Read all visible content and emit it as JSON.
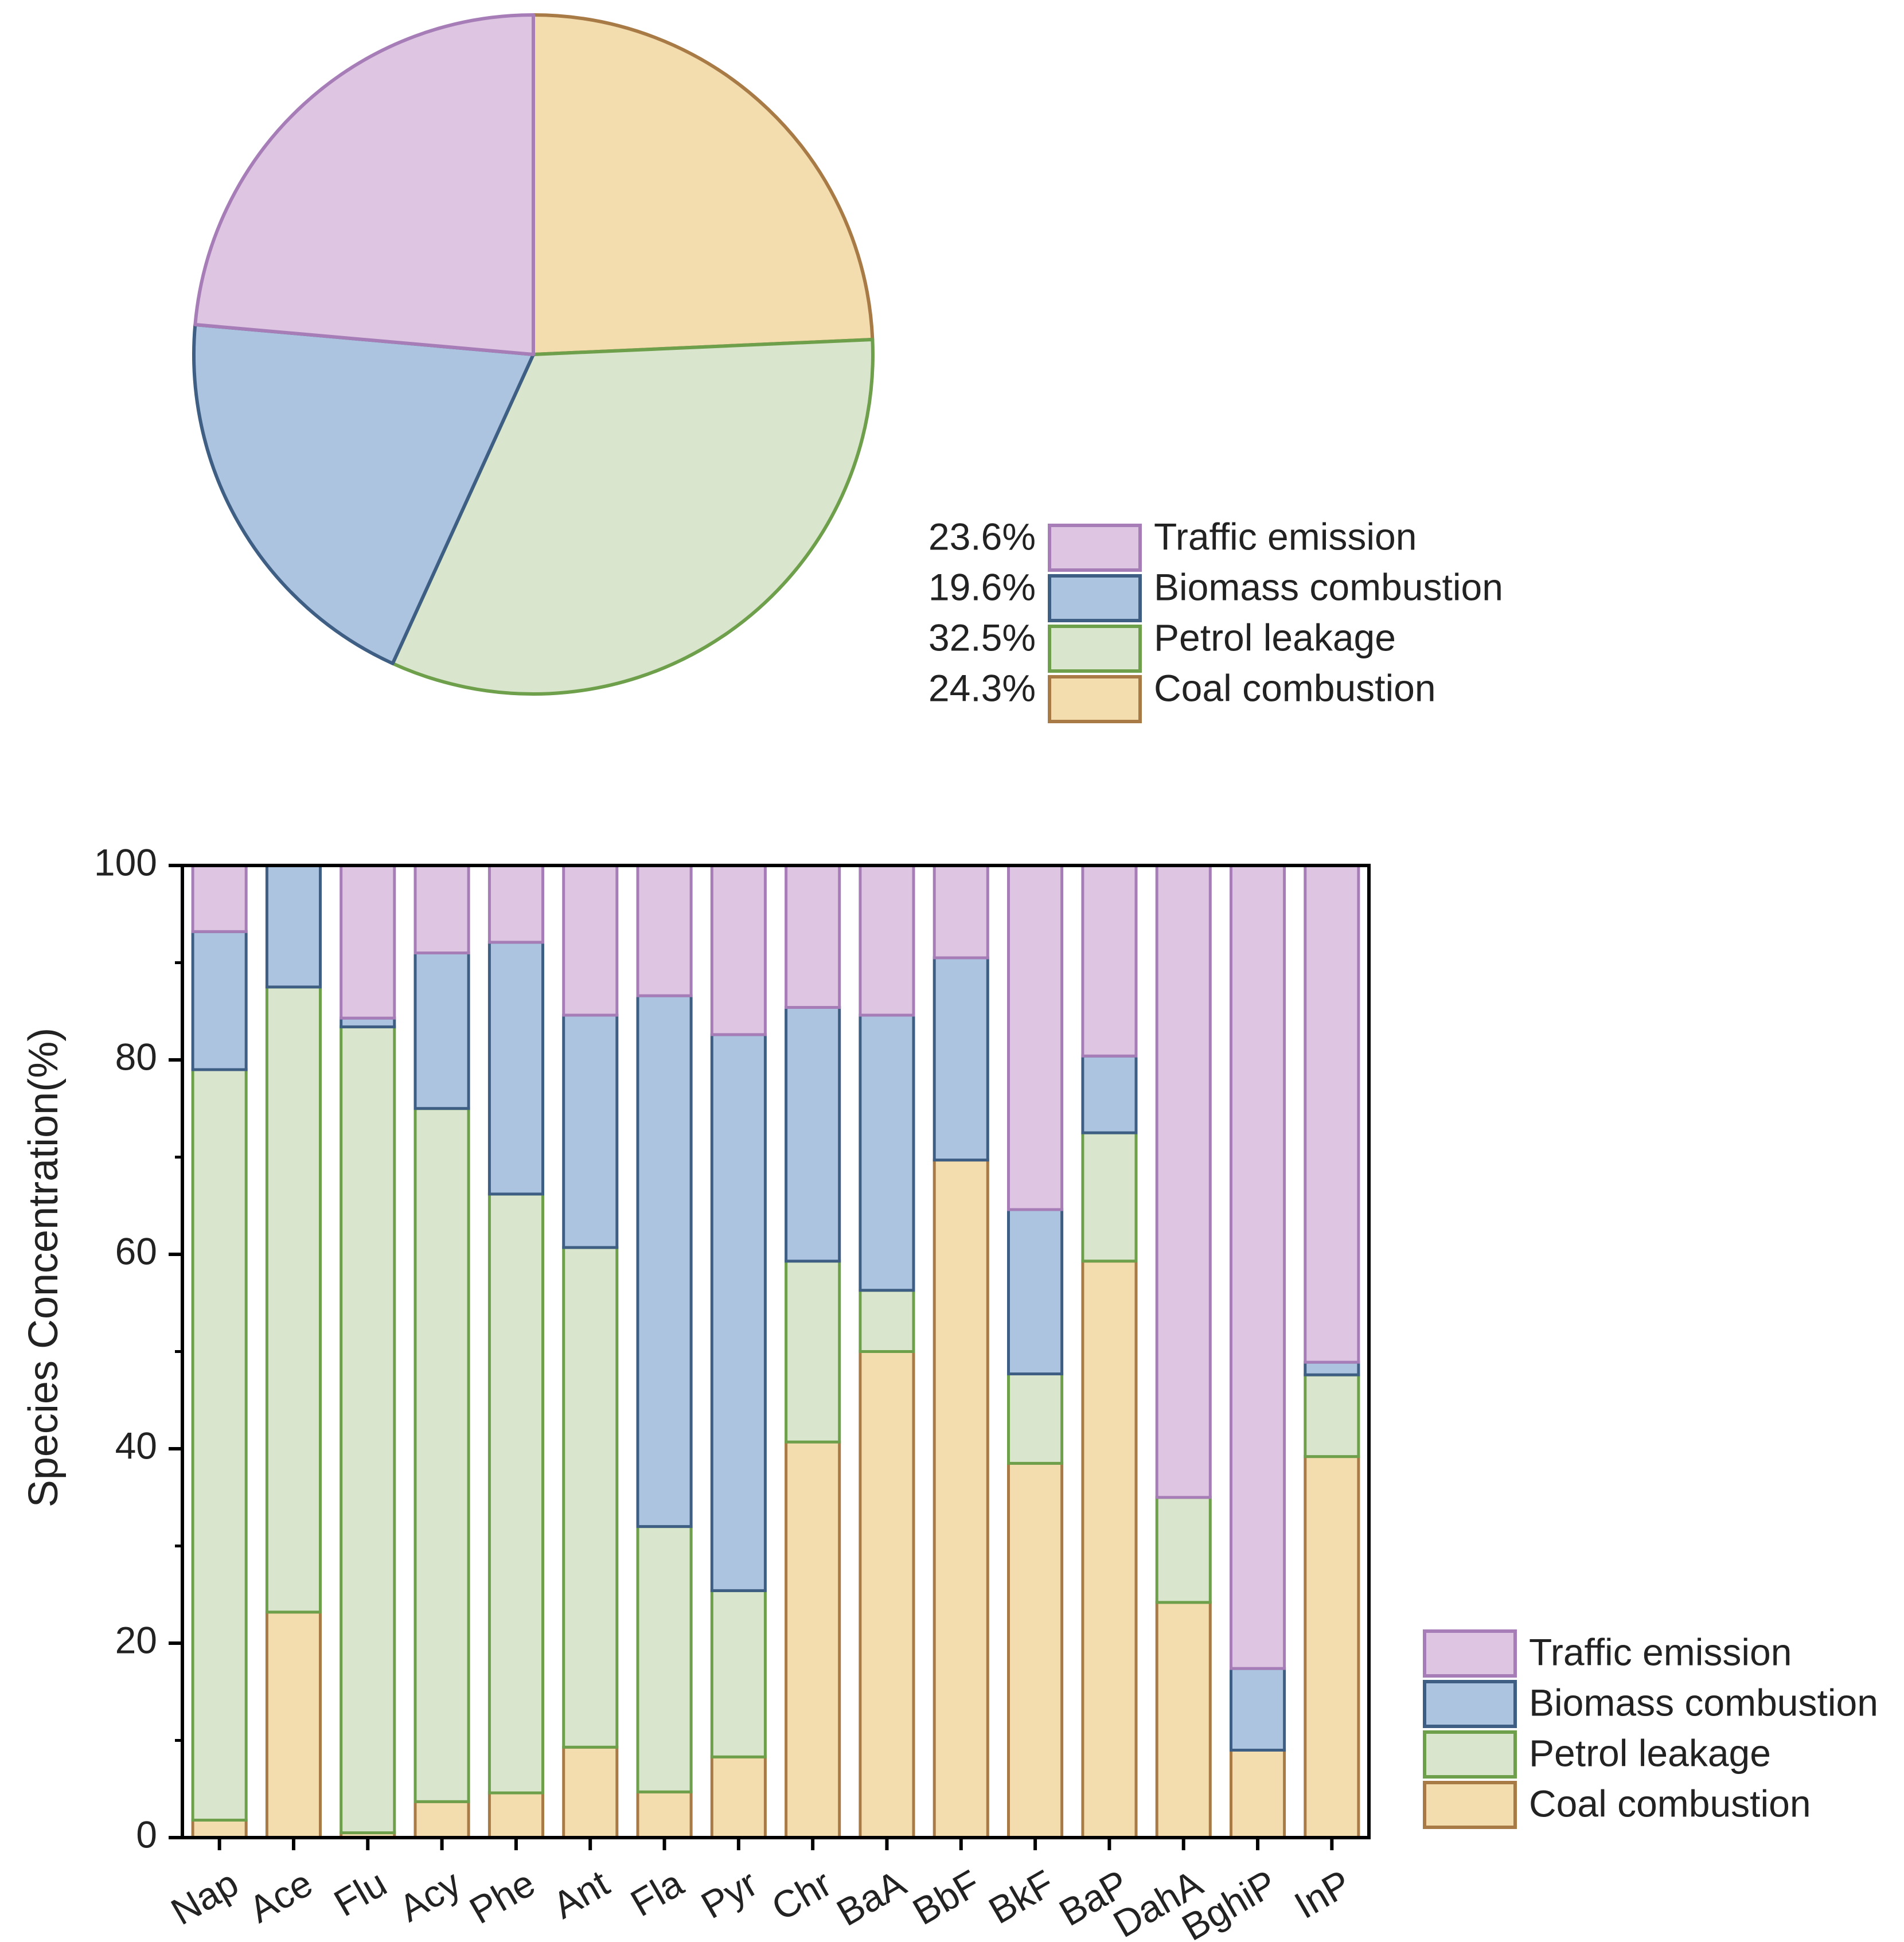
{
  "colors": {
    "traffic_fill": "#DEC6E2",
    "traffic_stroke": "#A77DB8",
    "biomass_fill": "#ADC4E0",
    "biomass_stroke": "#3E5F83",
    "petrol_fill": "#D9E5CC",
    "petrol_stroke": "#6E9F4B",
    "coal_fill": "#F3DCAE",
    "coal_stroke": "#A87A45"
  },
  "chart_data": [
    {
      "type": "pie",
      "slices": [
        {
          "label": "Coal combustion",
          "value": 24.3,
          "percent_label": "24.3%",
          "color": "coal"
        },
        {
          "label": "Petrol leakage",
          "value": 32.5,
          "percent_label": "32.5%",
          "color": "petrol"
        },
        {
          "label": "Biomass combustion",
          "value": 19.6,
          "percent_label": "19.6%",
          "color": "biomass"
        },
        {
          "label": "Traffic emission",
          "value": 23.6,
          "percent_label": "23.6%",
          "color": "traffic"
        }
      ],
      "legend": [
        {
          "percent": "23.6%",
          "label": "Traffic emission",
          "color": "traffic"
        },
        {
          "percent": "19.6%",
          "label": "Biomass combustion",
          "color": "biomass"
        },
        {
          "percent": "32.5%",
          "label": "Petrol leakage",
          "color": "petrol"
        },
        {
          "percent": "24.3%",
          "label": "Coal combustion",
          "color": "coal"
        }
      ]
    },
    {
      "type": "bar",
      "stacked": true,
      "categories": [
        "Nap",
        "Ace",
        "Flu",
        "Acy",
        "Phe",
        "Ant",
        "Fla",
        "Pyr",
        "Chr",
        "BaA",
        "BbF",
        "BkF",
        "BaP",
        "DahA",
        "BghiP",
        "InP"
      ],
      "series": [
        {
          "name": "Coal combustion",
          "color": "coal",
          "values": [
            1.8,
            23.2,
            0.5,
            3.7,
            4.6,
            9.3,
            4.7,
            8.3,
            40.7,
            50.0,
            69.7,
            38.5,
            59.3,
            24.2,
            9.0,
            39.2
          ]
        },
        {
          "name": "Petrol leakage",
          "color": "petrol",
          "values": [
            77.2,
            64.3,
            82.9,
            71.3,
            61.6,
            51.4,
            27.3,
            17.1,
            18.6,
            6.3,
            0.0,
            9.2,
            13.2,
            10.8,
            0.0,
            8.4
          ]
        },
        {
          "name": "Biomass combustion",
          "color": "biomass",
          "values": [
            14.2,
            12.5,
            0.9,
            16.0,
            25.9,
            23.9,
            54.6,
            57.2,
            26.1,
            28.3,
            20.8,
            16.9,
            7.9,
            0.0,
            8.4,
            1.3
          ]
        },
        {
          "name": "Traffic emission",
          "color": "traffic",
          "values": [
            6.8,
            0.0,
            15.7,
            9.0,
            7.9,
            15.4,
            13.4,
            17.4,
            14.6,
            15.4,
            9.5,
            35.4,
            19.6,
            65.0,
            82.6,
            51.1
          ]
        }
      ],
      "ylabel": "Species Concentration(%)",
      "xlabel": "",
      "ylim": [
        0,
        100
      ],
      "yticks": [
        0,
        20,
        40,
        60,
        80,
        100
      ],
      "ytick_labels": [
        "0",
        "20",
        "40",
        "60",
        "80",
        "100"
      ],
      "legend": [
        {
          "label": "Traffic emission",
          "color": "traffic"
        },
        {
          "label": "Biomass combustion",
          "color": "biomass"
        },
        {
          "label": "Petrol leakage",
          "color": "petrol"
        },
        {
          "label": "Coal combustion",
          "color": "coal"
        }
      ]
    }
  ]
}
